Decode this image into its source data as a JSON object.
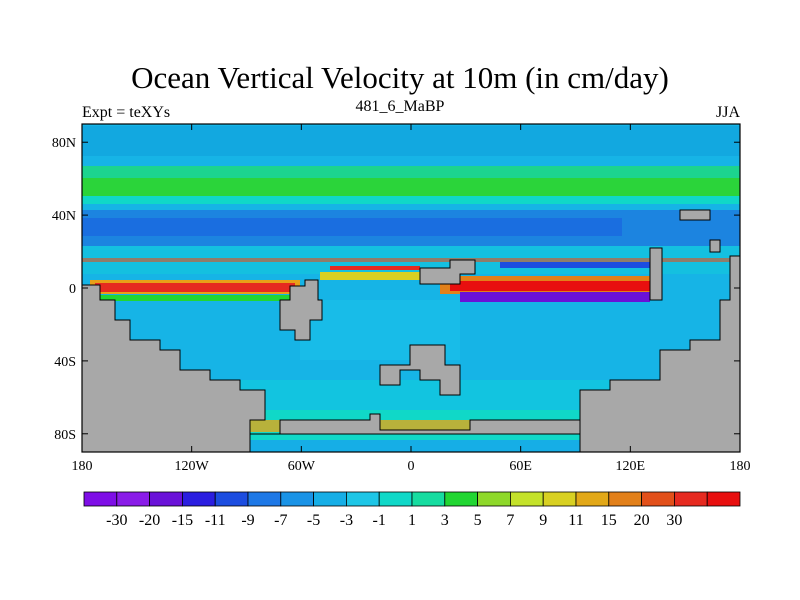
{
  "title": "Ocean Vertical Velocity at 10m (in cm/day)",
  "left_string": "Expt = teXYs",
  "center_string": "481_6_MaBP",
  "right_string": "JJA",
  "x_ticks": [
    {
      "value": -180,
      "label": "180"
    },
    {
      "value": -120,
      "label": "120W"
    },
    {
      "value": -60,
      "label": "60W"
    },
    {
      "value": 0,
      "label": "0"
    },
    {
      "value": 60,
      "label": "60E"
    },
    {
      "value": 120,
      "label": "120E"
    },
    {
      "value": 180,
      "label": "180"
    }
  ],
  "y_ticks": [
    {
      "value": 80,
      "label": "80N"
    },
    {
      "value": 40,
      "label": "40N"
    },
    {
      "value": 0,
      "label": "0"
    },
    {
      "value": -40,
      "label": "40S"
    },
    {
      "value": -80,
      "label": "80S"
    }
  ],
  "lon_range": [
    -180,
    180
  ],
  "lat_range": [
    -90,
    90
  ],
  "land_color": "#a8a8a8",
  "colorbar": {
    "colors": [
      "#7e0ee6",
      "#8a1ce8",
      "#6a12d8",
      "#2b1ee0",
      "#1c4de0",
      "#1e78e6",
      "#1a93e6",
      "#16aee6",
      "#1ec6e6",
      "#10d8c8",
      "#16dca0",
      "#22d632",
      "#8ed82a",
      "#c4e22a",
      "#d8d022",
      "#e2a818",
      "#e2801a",
      "#e2501a",
      "#e62a20",
      "#e80f0f"
    ],
    "labels": [
      "-30",
      "-20",
      "-15",
      "-11",
      "-9",
      "-7",
      "-5",
      "-3",
      "-1",
      "1",
      "3",
      "5",
      "7",
      "9",
      "11",
      "15",
      "20",
      "30"
    ]
  }
}
